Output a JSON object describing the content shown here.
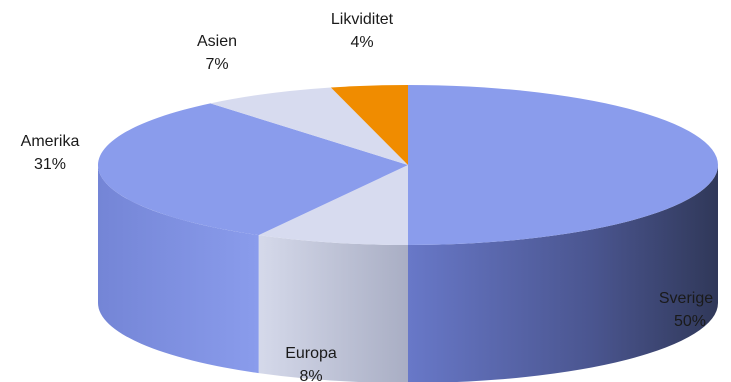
{
  "chart_data": {
    "type": "pie",
    "style": "3d",
    "slices": [
      {
        "name": "Sverige",
        "value": 50,
        "label_pct": "50%",
        "color": "#8a9cec",
        "side_color": "#3a4274"
      },
      {
        "name": "Europa",
        "value": 8,
        "label_pct": "8%",
        "color": "#d7dbef",
        "side_color": "#b9bed2"
      },
      {
        "name": "Amerika",
        "value": 31,
        "label_pct": "31%",
        "color": "#8a9cec",
        "side_color": "#7b8ee2"
      },
      {
        "name": "Asien",
        "value": 7,
        "label_pct": "7%",
        "color": "#d7dbef",
        "side_color": "#c6cbe0"
      },
      {
        "name": "Likviditet",
        "value": 4,
        "label_pct": "4%",
        "color": "#f08c00",
        "side_color": "#c06f00"
      }
    ]
  }
}
